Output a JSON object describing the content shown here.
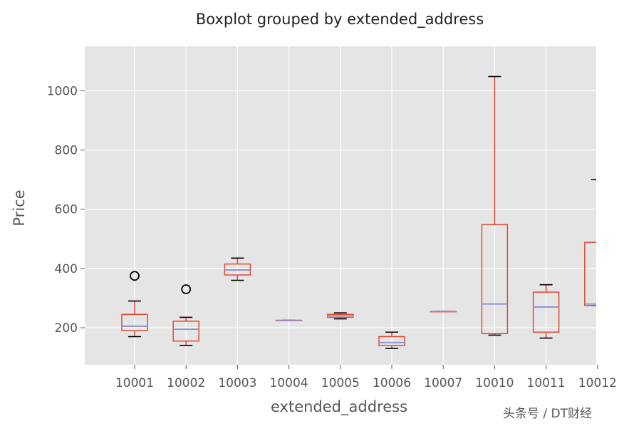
{
  "chart_data": {
    "type": "boxplot",
    "title": "Boxplot grouped by extended_address",
    "xlabel": "extended_address",
    "ylabel": "Price",
    "ylim": [
      75,
      1150
    ],
    "yticks": [
      200,
      400,
      600,
      800,
      1000
    ],
    "grid": true,
    "categories": [
      "10001",
      "10002",
      "10003",
      "10004",
      "10005",
      "10006",
      "10007",
      "10010",
      "10011",
      "10012"
    ],
    "boxes": [
      {
        "category": "10001",
        "whisker_low": 170,
        "q1": 190,
        "median": 205,
        "q3": 245,
        "whisker_high": 290,
        "outliers": [
          375
        ]
      },
      {
        "category": "10002",
        "whisker_low": 140,
        "q1": 155,
        "median": 195,
        "q3": 222,
        "whisker_high": 235,
        "outliers": [
          330
        ]
      },
      {
        "category": "10003",
        "whisker_low": 360,
        "q1": 378,
        "median": 395,
        "q3": 415,
        "whisker_high": 435,
        "outliers": []
      },
      {
        "category": "10004",
        "whisker_low": 225,
        "q1": 225,
        "median": 225,
        "q3": 225,
        "whisker_high": 225,
        "outliers": []
      },
      {
        "category": "10005",
        "whisker_low": 230,
        "q1": 235,
        "median": 240,
        "q3": 245,
        "whisker_high": 250,
        "outliers": []
      },
      {
        "category": "10006",
        "whisker_low": 130,
        "q1": 140,
        "median": 150,
        "q3": 170,
        "whisker_high": 185,
        "outliers": []
      },
      {
        "category": "10007",
        "whisker_low": 255,
        "q1": 255,
        "median": 255,
        "q3": 255,
        "whisker_high": 255,
        "outliers": []
      },
      {
        "category": "10010",
        "whisker_low": 175,
        "q1": 180,
        "median": 280,
        "q3": 548,
        "whisker_high": 1048,
        "outliers": []
      },
      {
        "category": "10011",
        "whisker_low": 165,
        "q1": 185,
        "median": 270,
        "q3": 320,
        "whisker_high": 345,
        "outliers": []
      },
      {
        "category": "10012",
        "whisker_low": 275,
        "q1": 275,
        "median": 280,
        "q3": 488,
        "whisker_high": 700,
        "outliers": []
      }
    ],
    "colors": {
      "background": "#e5e5e5",
      "grid": "#ffffff",
      "box": "#e24a33",
      "median": "#8b8fcf",
      "whisker_cap": "#000000",
      "outlier": "#000000"
    }
  },
  "watermark": "头条号 / DT财经"
}
